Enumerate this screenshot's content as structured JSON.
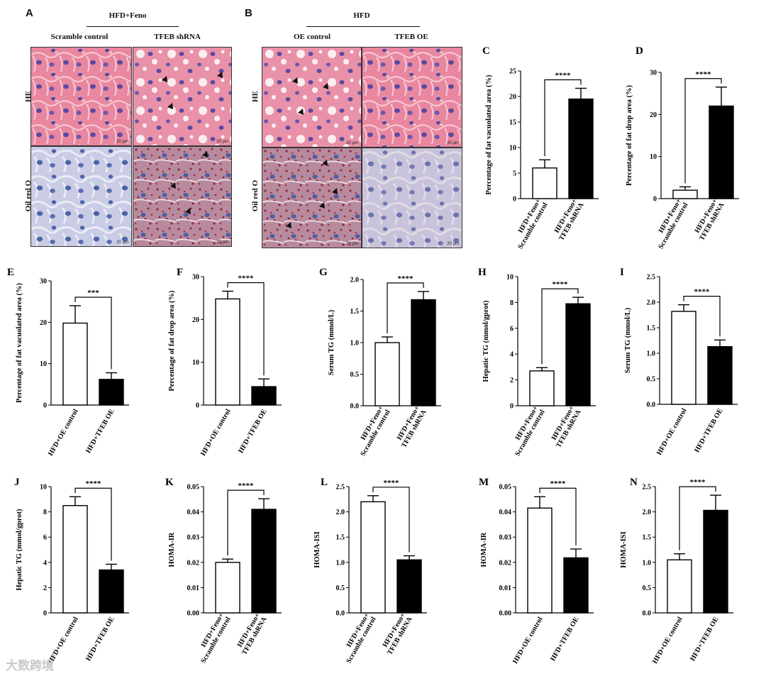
{
  "histology": {
    "A": {
      "letter": "A",
      "group": "HFD+Feno",
      "col1": "Scramble control",
      "col2": "TFEB shRNA"
    },
    "B": {
      "letter": "B",
      "group": "HFD",
      "col1": "OE control",
      "col2": "TFEB OE"
    },
    "row_he": "HE",
    "row_oil": "Oil red O",
    "scale_bar": "20 μm"
  },
  "colors": {
    "he_bg": "#e8879f",
    "he_cell": "#f2a7b9",
    "nucleus": "#5b4aa0",
    "oil_bg": "#c9cce4",
    "oil_drop": "#8e2a3e",
    "bar_black": "#000000",
    "bar_white": "#ffffff"
  },
  "significance": "****",
  "chart_data": [
    {
      "id": "C",
      "letter": "C",
      "type": "bar",
      "ylabel": "Percentage of fat vacuolated area (%)",
      "ylim": [
        0,
        25
      ],
      "ticks": [
        0,
        5,
        10,
        15,
        20,
        25
      ],
      "categories": [
        "HFD+Feno+ Scramble control",
        "HFD+Feno+ TFEB shRNA"
      ],
      "cat_lines": [
        [
          "HFD+Feno+",
          "Scramble control"
        ],
        [
          "HFD+Feno+",
          "TFEB shRNA"
        ]
      ],
      "values": [
        6.0,
        19.5
      ],
      "errors": [
        1.6,
        2.1
      ],
      "sig": "****"
    },
    {
      "id": "D",
      "letter": "D",
      "type": "bar",
      "ylabel": "Percentage of fat drop area (%)",
      "ylim": [
        0,
        30
      ],
      "ticks": [
        0,
        10,
        20,
        30
      ],
      "categories": [
        "HFD+Feno+ Scramble control",
        "HFD+Feno+ TFEB shRNA"
      ],
      "cat_lines": [
        [
          "HFD+Feno+",
          "Scramble control"
        ],
        [
          "HFD+Feno+",
          "TFEB shRNA"
        ]
      ],
      "values": [
        2.0,
        22.0
      ],
      "errors": [
        0.8,
        4.5
      ],
      "sig": "****"
    },
    {
      "id": "E",
      "letter": "E",
      "type": "bar",
      "ylabel": "Percentage of fat vacuolated area (%)",
      "ylim": [
        0,
        30
      ],
      "ticks": [
        0,
        10,
        20,
        30
      ],
      "categories": [
        "HFD+OE control",
        "HFD+TFEB OE"
      ],
      "cat_lines": [
        [
          "HFD+OE control"
        ],
        [
          "HFD+TFEB OE"
        ]
      ],
      "values": [
        19.8,
        6.2
      ],
      "errors": [
        4.2,
        1.6
      ],
      "sig": "***"
    },
    {
      "id": "F",
      "letter": "F",
      "type": "bar",
      "ylabel": "Percentage of fat drop area (%)",
      "ylim": [
        0,
        30
      ],
      "ticks": [
        0,
        10,
        20,
        30
      ],
      "categories": [
        "HFD+OE control",
        "HFD+TFEB OE"
      ],
      "cat_lines": [
        [
          "HFD+OE control"
        ],
        [
          "HFD+TFEB OE"
        ]
      ],
      "values": [
        24.8,
        4.3
      ],
      "errors": [
        1.8,
        1.8
      ],
      "sig": "****"
    },
    {
      "id": "G",
      "letter": "G",
      "type": "bar",
      "ylabel": "Serum TG (mmol/L)",
      "ylim": [
        0,
        2.0
      ],
      "ticks": [
        0.0,
        0.5,
        1.0,
        1.5,
        2.0
      ],
      "tick_labels": [
        "0.0",
        "0.5",
        "1.0",
        "1.5",
        "2.0"
      ],
      "categories": [
        "HFD+Feno+ Scramble control",
        "HFD+Feno+ TFEB shRNA"
      ],
      "cat_lines": [
        [
          "HFD+Feno+",
          "Scramble control"
        ],
        [
          "HFD+Feno+",
          "TFEB shRNA"
        ]
      ],
      "values": [
        1.0,
        1.68
      ],
      "errors": [
        0.09,
        0.13
      ],
      "sig": "****"
    },
    {
      "id": "H",
      "letter": "H",
      "type": "bar",
      "ylabel": "Hepatic TG (mmol/gprot)",
      "ylim": [
        0,
        10
      ],
      "ticks": [
        0,
        2,
        4,
        6,
        8,
        10
      ],
      "categories": [
        "HFD+Feno+ Scramble control",
        "HFD+Feno+ TFEB shRNA"
      ],
      "cat_lines": [
        [
          "HFD+Feno+",
          "Scramble control"
        ],
        [
          "HFD+Feno+",
          "TFEB shRNA"
        ]
      ],
      "values": [
        2.7,
        7.9
      ],
      "errors": [
        0.25,
        0.5
      ],
      "sig": "****"
    },
    {
      "id": "I",
      "letter": "I",
      "type": "bar",
      "ylabel": "Serum TG (mmol/L)",
      "ylim": [
        0,
        2.5
      ],
      "ticks": [
        0.0,
        0.5,
        1.0,
        1.5,
        2.0,
        2.5
      ],
      "tick_labels": [
        "0.0",
        "0.5",
        "1.0",
        "1.5",
        "2.0",
        "2.5"
      ],
      "categories": [
        "HFD+OE control",
        "HFD+TFEB OE"
      ],
      "cat_lines": [
        [
          "HFD+OE control"
        ],
        [
          "HFD+TFEB OE"
        ]
      ],
      "values": [
        1.82,
        1.13
      ],
      "errors": [
        0.13,
        0.13
      ],
      "sig": "****"
    },
    {
      "id": "J",
      "letter": "J",
      "type": "bar",
      "ylabel": "Hepatic TG (mmol/gprot)",
      "ylim": [
        0,
        10
      ],
      "ticks": [
        0,
        2,
        4,
        6,
        8,
        10
      ],
      "categories": [
        "HFD+OE control",
        "HFD+TFEB OE"
      ],
      "cat_lines": [
        [
          "HFD+OE control"
        ],
        [
          "HFD+TFEB OE"
        ]
      ],
      "values": [
        8.5,
        3.4
      ],
      "errors": [
        0.7,
        0.45
      ],
      "sig": "****"
    },
    {
      "id": "K",
      "letter": "K",
      "type": "bar",
      "ylabel": "HOMA-IR",
      "ylim": [
        0,
        0.05
      ],
      "ticks": [
        0.0,
        0.01,
        0.02,
        0.03,
        0.04,
        0.05
      ],
      "tick_labels": [
        "0.00",
        "0.01",
        "0.02",
        "0.03",
        "0.04",
        "0.05"
      ],
      "categories": [
        "HFD+Feno+ Scramble control",
        "HFD+Feno+ TFEB shRNA"
      ],
      "cat_lines": [
        [
          "HFD+Feno+",
          "Scramble control"
        ],
        [
          "HFD+Feno+",
          "TFEB shRNA"
        ]
      ],
      "values": [
        0.02,
        0.041
      ],
      "errors": [
        0.0013,
        0.0042
      ],
      "sig": "****"
    },
    {
      "id": "L",
      "letter": "L",
      "type": "bar",
      "ylabel": "HOMA-ISI",
      "ylim": [
        0,
        2.5
      ],
      "ticks": [
        0.0,
        0.5,
        1.0,
        1.5,
        2.0,
        2.5
      ],
      "tick_labels": [
        "0.0",
        "0.5",
        "1.0",
        "1.5",
        "2.0",
        "2.5"
      ],
      "categories": [
        "HFD+Feno+ Scramble control",
        "HFD+Feno+ TFEB shRNA"
      ],
      "cat_lines": [
        [
          "HFD+Feno+",
          "Scramble control"
        ],
        [
          "HFD+Feno+",
          "TFEB shRNA"
        ]
      ],
      "values": [
        2.2,
        1.05
      ],
      "errors": [
        0.12,
        0.08
      ],
      "sig": "****"
    },
    {
      "id": "M",
      "letter": "M",
      "type": "bar",
      "ylabel": "HOMA-IR",
      "ylim": [
        0,
        0.05
      ],
      "ticks": [
        0.0,
        0.01,
        0.02,
        0.03,
        0.04,
        0.05
      ],
      "tick_labels": [
        "0.00",
        "0.01",
        "0.02",
        "0.03",
        "0.04",
        "0.05"
      ],
      "categories": [
        "HFD+OE control",
        "HFD+TFEB OE"
      ],
      "cat_lines": [
        [
          "HFD+OE control"
        ],
        [
          "HFD+TFEB OE"
        ]
      ],
      "values": [
        0.0415,
        0.0218
      ],
      "errors": [
        0.0045,
        0.0035
      ],
      "sig": "****"
    },
    {
      "id": "N",
      "letter": "N",
      "type": "bar",
      "ylabel": "HOMA-ISI",
      "ylim": [
        0,
        2.5
      ],
      "ticks": [
        0.0,
        0.5,
        1.0,
        1.5,
        2.0,
        2.5
      ],
      "tick_labels": [
        "0.0",
        "0.5",
        "1.0",
        "1.5",
        "2.0",
        "2.5"
      ],
      "categories": [
        "HFD+OE control",
        "HFD+TFEB OE"
      ],
      "cat_lines": [
        [
          "HFD+OE control"
        ],
        [
          "HFD+TFEB OE"
        ]
      ],
      "values": [
        1.05,
        2.03
      ],
      "errors": [
        0.12,
        0.3
      ],
      "sig": "****"
    }
  ],
  "watermark": "大数跨境"
}
